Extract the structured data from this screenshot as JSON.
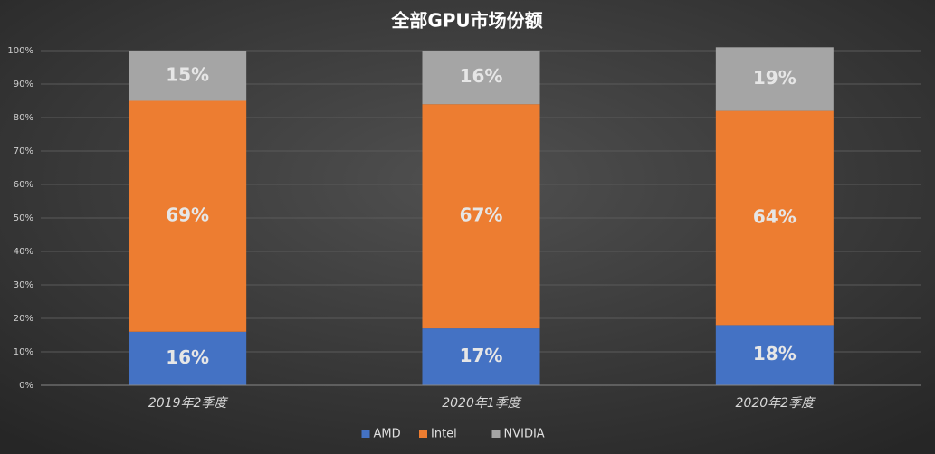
{
  "chart_data": {
    "type": "stacked_bar",
    "title": "全部GPU市场份额",
    "categories": [
      "2019年2季度",
      "2020年1季度",
      "2020年2季度"
    ],
    "series": [
      {
        "name": "AMD",
        "color": "#4472c4",
        "values": [
          16,
          17,
          18
        ],
        "value_labels": [
          "16%",
          "17%",
          "18%"
        ]
      },
      {
        "name": "Intel",
        "color": "#ed7d31",
        "values": [
          69,
          67,
          64
        ],
        "value_labels": [
          "69%",
          "67%",
          "64%"
        ]
      },
      {
        "name": "NVIDIA",
        "color": "#a5a5a5",
        "values": [
          15,
          16,
          19
        ],
        "value_labels": [
          "15%",
          "16%",
          "19%"
        ]
      }
    ],
    "ylim": [
      0,
      100
    ],
    "yticks": [
      {
        "value": 0,
        "label": "0%"
      },
      {
        "value": 10,
        "label": "10%"
      },
      {
        "value": 20,
        "label": "20%"
      },
      {
        "value": 30,
        "label": "30%"
      },
      {
        "value": 40,
        "label": "40%"
      },
      {
        "value": 50,
        "label": "50%"
      },
      {
        "value": 60,
        "label": "60%"
      },
      {
        "value": 70,
        "label": "70%"
      },
      {
        "value": 80,
        "label": "80%"
      },
      {
        "value": 90,
        "label": "90%"
      },
      {
        "value": 100,
        "label": "100%"
      }
    ],
    "grid": true,
    "legend": "bottom"
  }
}
